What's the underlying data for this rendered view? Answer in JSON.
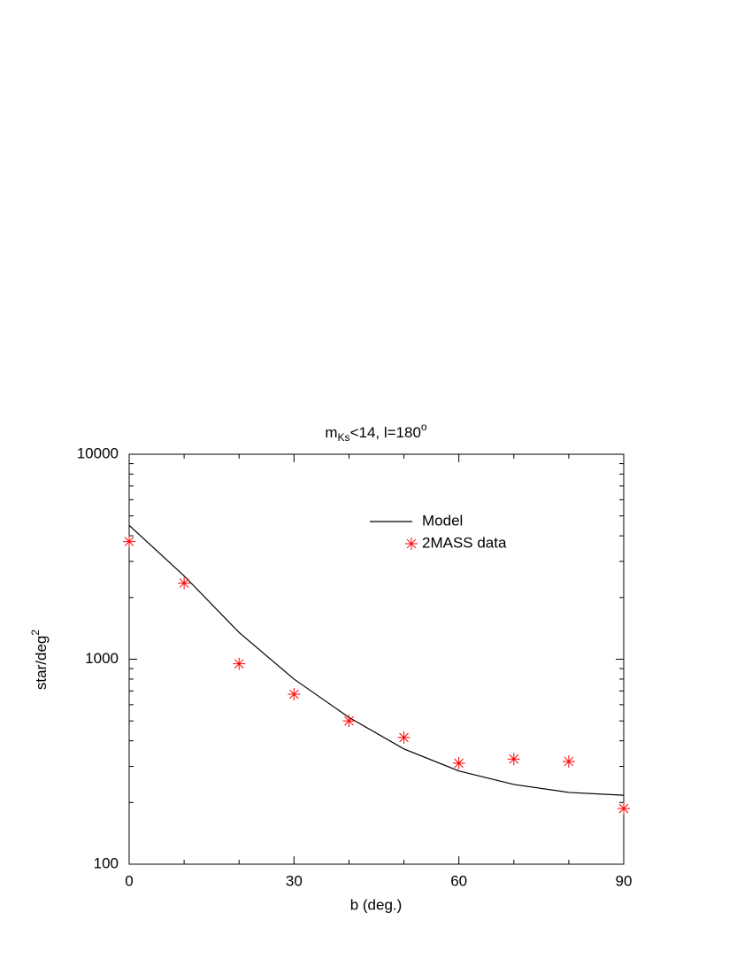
{
  "chart_data": {
    "type": "line",
    "title": {
      "base": "m",
      "subscript": "Ks",
      "rest": "<14, l=180",
      "superscript": "o"
    },
    "x_label": "b (deg.)",
    "y_label": {
      "base": "star/deg",
      "superscript": "2"
    },
    "x": [
      0,
      10,
      20,
      30,
      40,
      50,
      60,
      70,
      80,
      90
    ],
    "series": [
      {
        "name": "Model",
        "color": "#000000",
        "style": "line",
        "values": [
          4500,
          2550,
          1350,
          800,
          520,
          365,
          285,
          245,
          224,
          217
        ]
      },
      {
        "name": "2MASS data",
        "color": "#ff0000",
        "style": "asterisk",
        "values": [
          3750,
          2350,
          950,
          675,
          500,
          415,
          311,
          326,
          317,
          187
        ]
      }
    ],
    "xlim": [
      0,
      90
    ],
    "xticks": [
      0,
      30,
      60,
      90
    ],
    "xminorticks": [
      10,
      20,
      40,
      50,
      70,
      80
    ],
    "ylim": [
      100,
      10000
    ],
    "yticks": [
      100,
      1000,
      10000
    ],
    "yminorticks": [
      200,
      300,
      400,
      500,
      600,
      700,
      800,
      900,
      2000,
      3000,
      4000,
      5000,
      6000,
      7000,
      8000,
      9000
    ],
    "y_log": true,
    "legend": "upper right"
  }
}
